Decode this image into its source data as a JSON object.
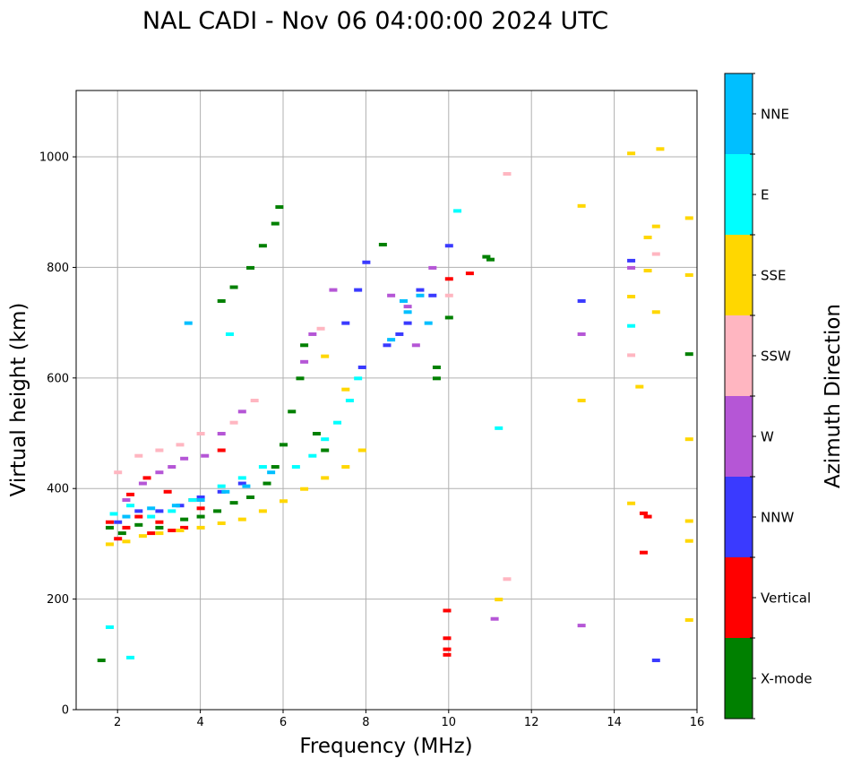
{
  "chart_data": {
    "type": "scatter",
    "title": "NAL CADI - Nov 06 04:00:00 2024 UTC",
    "xlabel": "Frequency (MHz)",
    "ylabel": "Virtual height (km)",
    "colorbar_label": "Azimuth Direction",
    "xlim": [
      1,
      16
    ],
    "ylim": [
      0,
      1120
    ],
    "xticks": [
      2,
      4,
      6,
      8,
      10,
      12,
      14,
      16
    ],
    "yticks": [
      0,
      200,
      400,
      600,
      800,
      1000
    ],
    "grid": true,
    "categories": [
      {
        "name": "X-mode",
        "color": "#008000"
      },
      {
        "name": "Vertical",
        "color": "#ff0000"
      },
      {
        "name": "NNW",
        "color": "#3a3aff"
      },
      {
        "name": "W",
        "color": "#b556d6"
      },
      {
        "name": "SSW",
        "color": "#ffb6c1"
      },
      {
        "name": "SSE",
        "color": "#ffd700"
      },
      {
        "name": "E",
        "color": "#00ffff"
      },
      {
        "name": "NNE",
        "color": "#00bfff"
      }
    ],
    "series": [
      {
        "name": "X-mode",
        "points": [
          [
            1.8,
            330
          ],
          [
            2.1,
            320
          ],
          [
            2.5,
            335
          ],
          [
            3.0,
            330
          ],
          [
            3.6,
            345
          ],
          [
            4.0,
            350
          ],
          [
            4.4,
            360
          ],
          [
            4.8,
            375
          ],
          [
            5.2,
            385
          ],
          [
            5.6,
            410
          ],
          [
            5.8,
            440
          ],
          [
            6.0,
            480
          ],
          [
            6.2,
            540
          ],
          [
            6.4,
            600
          ],
          [
            6.5,
            660
          ],
          [
            6.8,
            500
          ],
          [
            7.0,
            470
          ],
          [
            8.4,
            842
          ],
          [
            9.7,
            620
          ],
          [
            9.7,
            600
          ],
          [
            10.0,
            710
          ],
          [
            10.9,
            820
          ],
          [
            11.0,
            815
          ],
          [
            15.8,
            644
          ],
          [
            1.6,
            90
          ],
          [
            4.5,
            740
          ],
          [
            4.8,
            765
          ],
          [
            5.2,
            800
          ],
          [
            5.5,
            840
          ],
          [
            5.8,
            880
          ],
          [
            5.9,
            910
          ]
        ]
      },
      {
        "name": "Vertical",
        "points": [
          [
            1.8,
            340
          ],
          [
            2.0,
            310
          ],
          [
            2.2,
            330
          ],
          [
            2.5,
            350
          ],
          [
            2.8,
            320
          ],
          [
            3.0,
            340
          ],
          [
            3.3,
            325
          ],
          [
            3.6,
            330
          ],
          [
            4.0,
            365
          ],
          [
            2.3,
            390
          ],
          [
            2.7,
            420
          ],
          [
            3.2,
            395
          ],
          [
            3.8,
            380
          ],
          [
            4.5,
            470
          ],
          [
            9.95,
            180
          ],
          [
            9.95,
            130
          ],
          [
            9.95,
            110
          ],
          [
            9.95,
            100
          ],
          [
            10.0,
            780
          ],
          [
            10.5,
            790
          ],
          [
            14.7,
            285
          ],
          [
            14.7,
            356
          ],
          [
            14.8,
            350
          ]
        ]
      },
      {
        "name": "NNW",
        "points": [
          [
            2.0,
            340
          ],
          [
            2.5,
            360
          ],
          [
            3.0,
            360
          ],
          [
            3.5,
            370
          ],
          [
            4.0,
            385
          ],
          [
            4.5,
            395
          ],
          [
            5.0,
            410
          ],
          [
            7.5,
            700
          ],
          [
            7.8,
            760
          ],
          [
            7.9,
            620
          ],
          [
            8.0,
            810
          ],
          [
            8.5,
            660
          ],
          [
            8.8,
            680
          ],
          [
            9.0,
            700
          ],
          [
            9.3,
            760
          ],
          [
            9.6,
            750
          ],
          [
            10.0,
            840
          ],
          [
            13.2,
            740
          ],
          [
            14.4,
            813
          ],
          [
            15.0,
            90
          ]
        ]
      },
      {
        "name": "W",
        "points": [
          [
            2.2,
            380
          ],
          [
            2.6,
            410
          ],
          [
            3.0,
            430
          ],
          [
            3.3,
            440
          ],
          [
            3.6,
            455
          ],
          [
            4.1,
            460
          ],
          [
            4.5,
            500
          ],
          [
            5.0,
            540
          ],
          [
            6.5,
            630
          ],
          [
            6.7,
            680
          ],
          [
            7.2,
            760
          ],
          [
            8.6,
            750
          ],
          [
            9.0,
            730
          ],
          [
            9.2,
            660
          ],
          [
            9.6,
            800
          ],
          [
            11.1,
            165
          ],
          [
            13.2,
            680
          ],
          [
            13.2,
            153
          ],
          [
            14.4,
            800
          ]
        ]
      },
      {
        "name": "SSW",
        "points": [
          [
            2.0,
            430
          ],
          [
            2.5,
            460
          ],
          [
            3.0,
            470
          ],
          [
            3.5,
            480
          ],
          [
            4.0,
            500
          ],
          [
            4.8,
            520
          ],
          [
            5.3,
            560
          ],
          [
            6.9,
            690
          ],
          [
            10.0,
            750
          ],
          [
            11.4,
            970
          ],
          [
            11.4,
            237
          ],
          [
            14.4,
            642
          ],
          [
            15.0,
            825
          ]
        ]
      },
      {
        "name": "SSE",
        "points": [
          [
            1.8,
            300
          ],
          [
            2.2,
            305
          ],
          [
            2.6,
            315
          ],
          [
            3.0,
            320
          ],
          [
            3.5,
            325
          ],
          [
            4.0,
            330
          ],
          [
            4.5,
            338
          ],
          [
            5.0,
            345
          ],
          [
            5.5,
            360
          ],
          [
            6.0,
            378
          ],
          [
            6.5,
            400
          ],
          [
            7.0,
            420
          ],
          [
            7.5,
            440
          ],
          [
            7.9,
            470
          ],
          [
            7.0,
            640
          ],
          [
            7.5,
            580
          ],
          [
            11.2,
            200
          ],
          [
            13.2,
            912
          ],
          [
            13.2,
            560
          ],
          [
            14.4,
            1007
          ],
          [
            14.4,
            748
          ],
          [
            14.4,
            374
          ],
          [
            14.6,
            585
          ],
          [
            14.8,
            855
          ],
          [
            14.8,
            795
          ],
          [
            15.0,
            875
          ],
          [
            15.0,
            720
          ],
          [
            15.1,
            1015
          ],
          [
            15.8,
            890
          ],
          [
            15.8,
            787
          ],
          [
            15.8,
            490
          ],
          [
            15.8,
            342
          ],
          [
            15.8,
            306
          ],
          [
            15.8,
            163
          ]
        ]
      },
      {
        "name": "E",
        "points": [
          [
            1.9,
            355
          ],
          [
            2.3,
            370
          ],
          [
            2.8,
            350
          ],
          [
            3.3,
            360
          ],
          [
            3.8,
            380
          ],
          [
            4.5,
            405
          ],
          [
            5.0,
            420
          ],
          [
            5.5,
            440
          ],
          [
            6.3,
            440
          ],
          [
            6.7,
            460
          ],
          [
            7.0,
            490
          ],
          [
            7.3,
            520
          ],
          [
            7.6,
            560
          ],
          [
            7.8,
            600
          ],
          [
            1.8,
            150
          ],
          [
            2.3,
            95
          ],
          [
            10.2,
            903
          ],
          [
            11.2,
            510
          ],
          [
            14.4,
            695
          ],
          [
            4.7,
            680
          ]
        ]
      },
      {
        "name": "NNE",
        "points": [
          [
            2.2,
            350
          ],
          [
            2.8,
            365
          ],
          [
            3.4,
            370
          ],
          [
            4.0,
            380
          ],
          [
            4.6,
            395
          ],
          [
            5.1,
            405
          ],
          [
            5.7,
            430
          ],
          [
            8.6,
            670
          ],
          [
            8.9,
            740
          ],
          [
            9.0,
            720
          ],
          [
            9.3,
            750
          ],
          [
            9.5,
            700
          ],
          [
            3.7,
            700
          ]
        ]
      }
    ]
  }
}
